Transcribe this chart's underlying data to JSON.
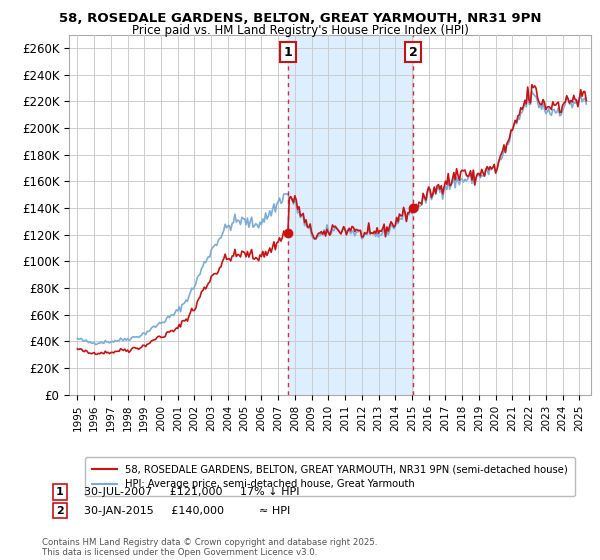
{
  "title_line1": "58, ROSEDALE GARDENS, BELTON, GREAT YARMOUTH, NR31 9PN",
  "title_line2": "Price paid vs. HM Land Registry's House Price Index (HPI)",
  "ylim": [
    0,
    270000
  ],
  "yticks": [
    0,
    20000,
    40000,
    60000,
    80000,
    100000,
    120000,
    140000,
    160000,
    180000,
    200000,
    220000,
    240000,
    260000
  ],
  "ytick_labels": [
    "£0",
    "£20K",
    "£40K",
    "£60K",
    "£80K",
    "£100K",
    "£120K",
    "£140K",
    "£160K",
    "£180K",
    "£200K",
    "£220K",
    "£240K",
    "£260K"
  ],
  "hpi_color": "#7aaddb",
  "hpi_fill_color": "#ddeeff",
  "price_color": "#cc1111",
  "sale1_x": 2007.583,
  "sale1_y": 121000,
  "sale1_label": "1",
  "sale1_date": "30-JUL-2007",
  "sale1_price": "£121,000",
  "sale1_note": "17% ↓ HPI",
  "sale2_x": 2015.083,
  "sale2_y": 140000,
  "sale2_label": "2",
  "sale2_date": "30-JAN-2015",
  "sale2_price": "£140,000",
  "sale2_note": "≈ HPI",
  "legend_price_label": "58, ROSEDALE GARDENS, BELTON, GREAT YARMOUTH, NR31 9PN (semi-detached house)",
  "legend_hpi_label": "HPI: Average price, semi-detached house, Great Yarmouth",
  "copyright_text": "Contains HM Land Registry data © Crown copyright and database right 2025.\nThis data is licensed under the Open Government Licence v3.0.",
  "background_color": "#ffffff",
  "grid_color": "#cccccc",
  "xmin": 1994.5,
  "xmax": 2025.7
}
